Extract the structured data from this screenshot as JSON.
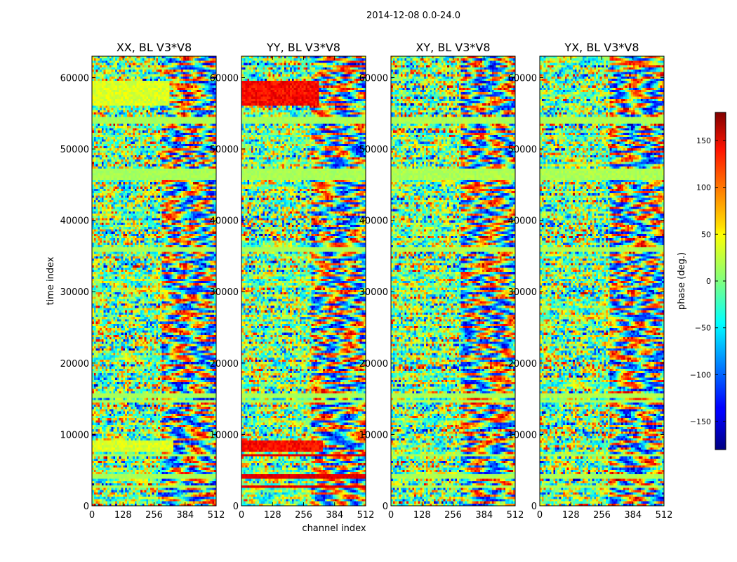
{
  "suptitle": "2014-12-08 0.0-24.0",
  "chart_data": {
    "type": "heatmap",
    "suptitle": "2014-12-08 0.0-24.0",
    "xlabel": "channel index",
    "ylabel": "time index",
    "xlim": [
      0,
      512
    ],
    "ylim": [
      0,
      63000
    ],
    "x_ticks": [
      0,
      128,
      256,
      384,
      512
    ],
    "y_ticks": [
      0,
      10000,
      20000,
      30000,
      40000,
      50000,
      60000
    ],
    "panels": [
      {
        "title": "XX, BL V3*V8",
        "polarization": "XX",
        "baseline": "V3*V8",
        "phase_pattern": "noisy phase wraps with smooth fringes at high channels; flagged bands near 0 deg"
      },
      {
        "title": "YY, BL V3*V8",
        "polarization": "YY",
        "baseline": "V3*V8",
        "phase_pattern": "noisy phase wraps; strong red (~+150 deg) bands near time 55000-59000 and 8000"
      },
      {
        "title": "XY, BL V3*V8",
        "polarization": "XY",
        "baseline": "V3*V8",
        "phase_pattern": "mostly noise-like phase with fringe bands at high channels"
      },
      {
        "title": "YX, BL V3*V8",
        "polarization": "YX",
        "baseline": "V3*V8",
        "phase_pattern": "mostly noise-like phase with fringe bands at high channels"
      }
    ],
    "flagged_time_bands": [
      [
        53400,
        54400
      ],
      [
        45800,
        47200
      ],
      [
        35500,
        36300
      ],
      [
        15200,
        15900
      ],
      [
        14600,
        14900
      ],
      [
        6900,
        7300
      ],
      [
        3900,
        4300
      ],
      [
        2600,
        2800
      ]
    ],
    "colorbar": {
      "label": "phase (deg.)",
      "range": [
        -180,
        180
      ],
      "ticks": [
        -150,
        -100,
        -50,
        0,
        50,
        100,
        150
      ],
      "tick_labels": [
        "−150",
        "−100",
        "−50",
        "0",
        "50",
        "100",
        "150"
      ],
      "colormap": "jet"
    }
  }
}
